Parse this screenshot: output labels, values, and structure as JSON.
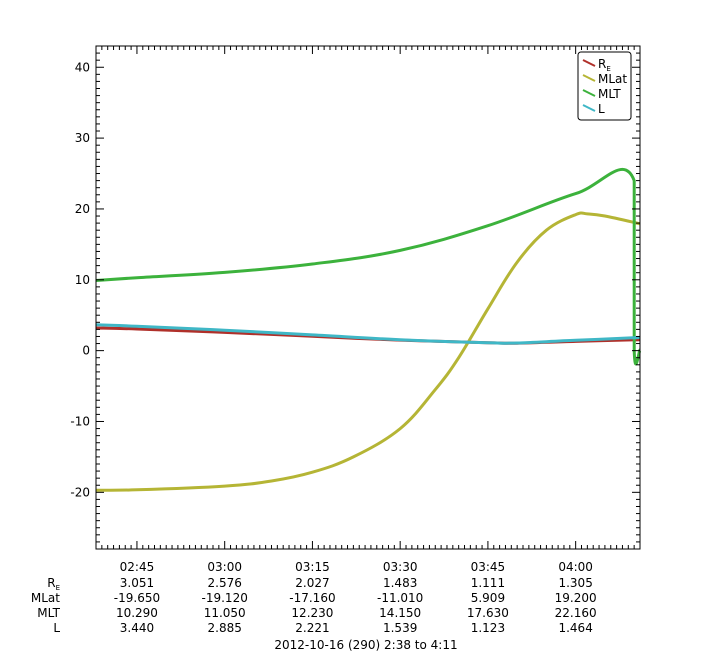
{
  "chart_data": {
    "type": "line",
    "ylim": [
      -28,
      43
    ],
    "y_ticks": [
      40,
      30,
      20,
      10,
      0,
      -10,
      -20
    ],
    "y_tick_labels": [
      "40",
      "30",
      "20",
      "10",
      "0",
      "-10",
      "-20"
    ],
    "x_range": [
      "02:38",
      "04:11"
    ],
    "x_ticks": [
      "02:45",
      "03:00",
      "03:15",
      "03:30",
      "03:45",
      "04:00"
    ],
    "grid": false,
    "legend_position": "top-right",
    "legend": [
      {
        "main": "R",
        "sub": "E",
        "color": "#b0302a"
      },
      {
        "main": "MLat",
        "sub": "",
        "color": "#b5b535"
      },
      {
        "main": "MLT",
        "sub": "",
        "color": "#3cb23c"
      },
      {
        "main": "L",
        "sub": "",
        "color": "#3fb7c6"
      }
    ],
    "series": [
      {
        "name": "RE",
        "color": "#b0302a",
        "x": [
          "02:38",
          "02:45",
          "03:00",
          "03:15",
          "03:30",
          "03:45",
          "03:50",
          "04:00",
          "04:11"
        ],
        "y": [
          3.2,
          3.051,
          2.576,
          2.027,
          1.483,
          1.111,
          1.05,
          1.305,
          1.55
        ]
      },
      {
        "name": "MLat",
        "color": "#b5b535",
        "x": [
          "02:38",
          "02:45",
          "03:00",
          "03:08",
          "03:15",
          "03:22",
          "03:30",
          "03:36",
          "03:40",
          "03:45",
          "03:50",
          "03:55",
          "04:00",
          "04:02",
          "04:05",
          "04:11"
        ],
        "y": [
          -19.7,
          -19.65,
          -19.12,
          -18.4,
          -17.16,
          -15.0,
          -11.01,
          -5.5,
          -1.0,
          5.909,
          12.5,
          17.0,
          19.2,
          19.3,
          19.0,
          17.9
        ]
      },
      {
        "name": "MLT",
        "color": "#3cb23c",
        "x": [
          "02:38",
          "02:45",
          "03:00",
          "03:15",
          "03:30",
          "03:45",
          "04:00",
          "04:10",
          "04:10",
          "04:11"
        ],
        "y": [
          9.9,
          10.29,
          11.05,
          12.23,
          14.15,
          17.63,
          22.16,
          24.0,
          0.0,
          0.1
        ]
      },
      {
        "name": "L",
        "color": "#3fb7c6",
        "x": [
          "02:38",
          "02:45",
          "03:00",
          "03:15",
          "03:30",
          "03:45",
          "03:50",
          "04:00",
          "04:11"
        ],
        "y": [
          3.65,
          3.44,
          2.885,
          2.221,
          1.539,
          1.123,
          1.08,
          1.464,
          1.85
        ]
      }
    ],
    "table": {
      "row_labels": [
        {
          "main": "R",
          "sub": "E"
        },
        {
          "main": "MLat",
          "sub": ""
        },
        {
          "main": "MLT",
          "sub": ""
        },
        {
          "main": "L",
          "sub": ""
        }
      ],
      "rows": [
        [
          "3.051",
          "2.576",
          "2.027",
          "1.483",
          "1.111",
          "1.305"
        ],
        [
          "-19.650",
          "-19.120",
          "-17.160",
          "-11.010",
          "5.909",
          "19.200"
        ],
        [
          "10.290",
          "11.050",
          "12.230",
          "14.150",
          "17.630",
          "22.160"
        ],
        [
          "3.440",
          "2.885",
          "2.221",
          "1.539",
          "1.123",
          "1.464"
        ]
      ]
    },
    "footer": "2012-10-16 (290) 2:38 to 4:11"
  }
}
